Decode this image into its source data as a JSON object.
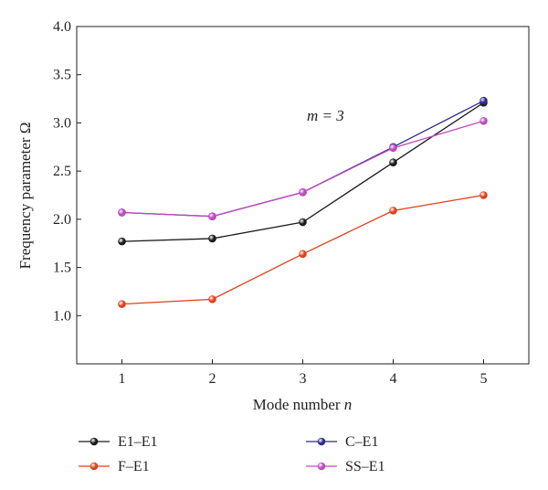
{
  "chart_data": {
    "type": "line",
    "xlabel": "Mode number n",
    "ylabel": "Frequency parameter Ω",
    "xlim": [
      0.5,
      5.5
    ],
    "ylim": [
      0.5,
      4.0
    ],
    "xticks": [
      1,
      2,
      3,
      4,
      5
    ],
    "yticks": [
      "1.0",
      "1.5",
      "2.0",
      "2.5",
      "3.0",
      "3.5",
      "4.0"
    ],
    "grid": false,
    "legend_position": "bottom",
    "annotation": "m = 3",
    "x": [
      1,
      2,
      3,
      4,
      5
    ],
    "series": [
      {
        "name": "E1–E1",
        "color": "#1a1a1a",
        "values": [
          1.77,
          1.8,
          1.97,
          2.59,
          3.21
        ]
      },
      {
        "name": "F–E1",
        "color": "#e0401c",
        "values": [
          1.12,
          1.17,
          1.64,
          2.09,
          2.25
        ]
      },
      {
        "name": "C–E1",
        "color": "#2b2a8e",
        "values": [
          2.07,
          2.03,
          2.28,
          2.75,
          3.23
        ]
      },
      {
        "name": "SS–E1",
        "color": "#c04bbd",
        "values": [
          2.07,
          2.03,
          2.28,
          2.74,
          3.02
        ]
      }
    ]
  }
}
